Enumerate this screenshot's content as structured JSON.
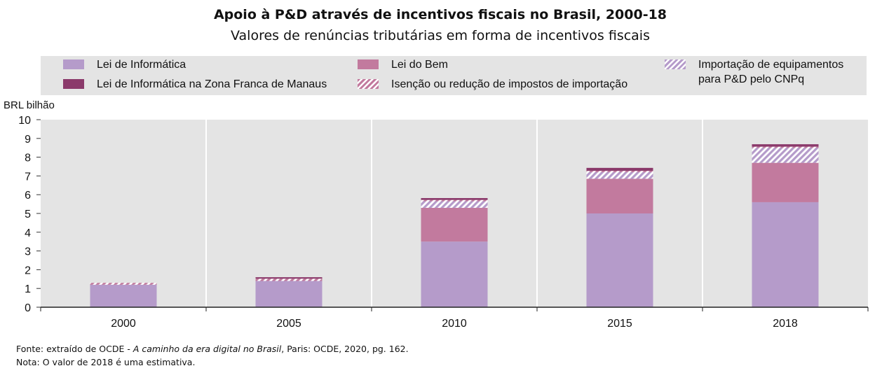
{
  "chart_data": {
    "type": "bar",
    "stacked": true,
    "title": "Apoio à P&D através de incentivos fiscais no Brasil, 2000-18",
    "subtitle": "Valores de renúncias tributárias em forma de incentivos fiscais",
    "ylabel": "BRL  bilhão",
    "ylim": [
      0,
      10
    ],
    "yticks": [
      "0",
      "1",
      "2",
      "3",
      "4",
      "5",
      "6",
      "7",
      "8",
      "9",
      "10"
    ],
    "categories": [
      "2000",
      "2005",
      "2010",
      "2015",
      "2018"
    ],
    "grid": "vertical",
    "legend_position": "top",
    "series": [
      {
        "name": "Lei de Informática",
        "color": "#b59bca",
        "pattern": "solid",
        "values": [
          1.2,
          1.4,
          3.5,
          5.0,
          5.6
        ]
      },
      {
        "name": "Lei do Bem",
        "color": "#c27a9e",
        "pattern": "solid",
        "values": [
          0,
          0,
          1.8,
          1.85,
          2.1
        ]
      },
      {
        "name": "Importação de equipamentos\npara P&D pelo CNPq",
        "color": "#b59bca",
        "pattern": "hatch",
        "values": [
          0,
          0,
          0.35,
          0.35,
          0.8
        ]
      },
      {
        "name": "Isenção ou redução de impostos de importação",
        "color": "#c27a9e",
        "pattern": "hatch",
        "values": [
          0.1,
          0.12,
          0.07,
          0.07,
          0.06
        ]
      },
      {
        "name": "Lei de Informática na Zona Franca de Manaus",
        "color": "#8b3a6b",
        "pattern": "solid",
        "values": [
          0,
          0.08,
          0.1,
          0.16,
          0.13
        ]
      }
    ]
  },
  "footer": {
    "source_prefix": "Fonte: extraído de OCDE - ",
    "source_title": "A caminho da era digital no Brasil",
    "source_suffix": ", Paris: OCDE, 2020,  pg. 162.",
    "note": "Nota: O valor de 2018  é uma estimativa."
  }
}
